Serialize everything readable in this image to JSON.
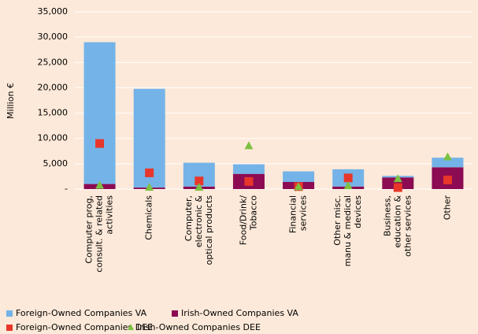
{
  "chart_data": {
    "type": "bar",
    "y_label": "Million €",
    "categories": [
      [
        "Computer prog,",
        "consult. & related",
        "activities"
      ],
      [
        "Chemicals"
      ],
      [
        "Computer,",
        "electronic &",
        "optical products"
      ],
      [
        "Food/Drink/",
        "Tobacco"
      ],
      [
        "Financial",
        "services"
      ],
      [
        "Other misc.",
        "manu & medical",
        "devices"
      ],
      [
        "Business,",
        "education &",
        "other services"
      ],
      [
        "Other"
      ]
    ],
    "series": [
      {
        "name": "Foreign-Owned Companies VA",
        "type": "bar",
        "color": "#74b3e8",
        "values": [
          28000,
          19500,
          4700,
          1900,
          2100,
          3400,
          300,
          1900
        ]
      },
      {
        "name": "Irish-Owned Companies VA",
        "type": "bar",
        "color": "#8c0b52",
        "values": [
          1000,
          300,
          500,
          3000,
          1400,
          500,
          2300,
          4300
        ]
      },
      {
        "name": "Foreign-Owned Companies DEE",
        "type": "scatter",
        "marker": "square",
        "color": "#e8362a",
        "values": [
          9000,
          3200,
          1600,
          1500,
          500,
          2200,
          300,
          1800
        ]
      },
      {
        "name": "Irish-Owned Companies DEE",
        "type": "scatter",
        "marker": "triangle",
        "color": "#7cc142",
        "values": [
          700,
          300,
          300,
          8500,
          400,
          600,
          2000,
          6300
        ]
      }
    ],
    "ylim": [
      0,
      35000
    ],
    "yticks": [
      {
        "value": 0,
        "label": "-"
      },
      {
        "value": 5000,
        "label": "5,000"
      },
      {
        "value": 10000,
        "label": "10,000"
      },
      {
        "value": 15000,
        "label": "15,000"
      },
      {
        "value": 20000,
        "label": "20,000"
      },
      {
        "value": 25000,
        "label": "25,000"
      },
      {
        "value": 30000,
        "label": "30,000"
      },
      {
        "value": 35000,
        "label": "35,000"
      }
    ],
    "grid": true,
    "legend": "bottom"
  }
}
